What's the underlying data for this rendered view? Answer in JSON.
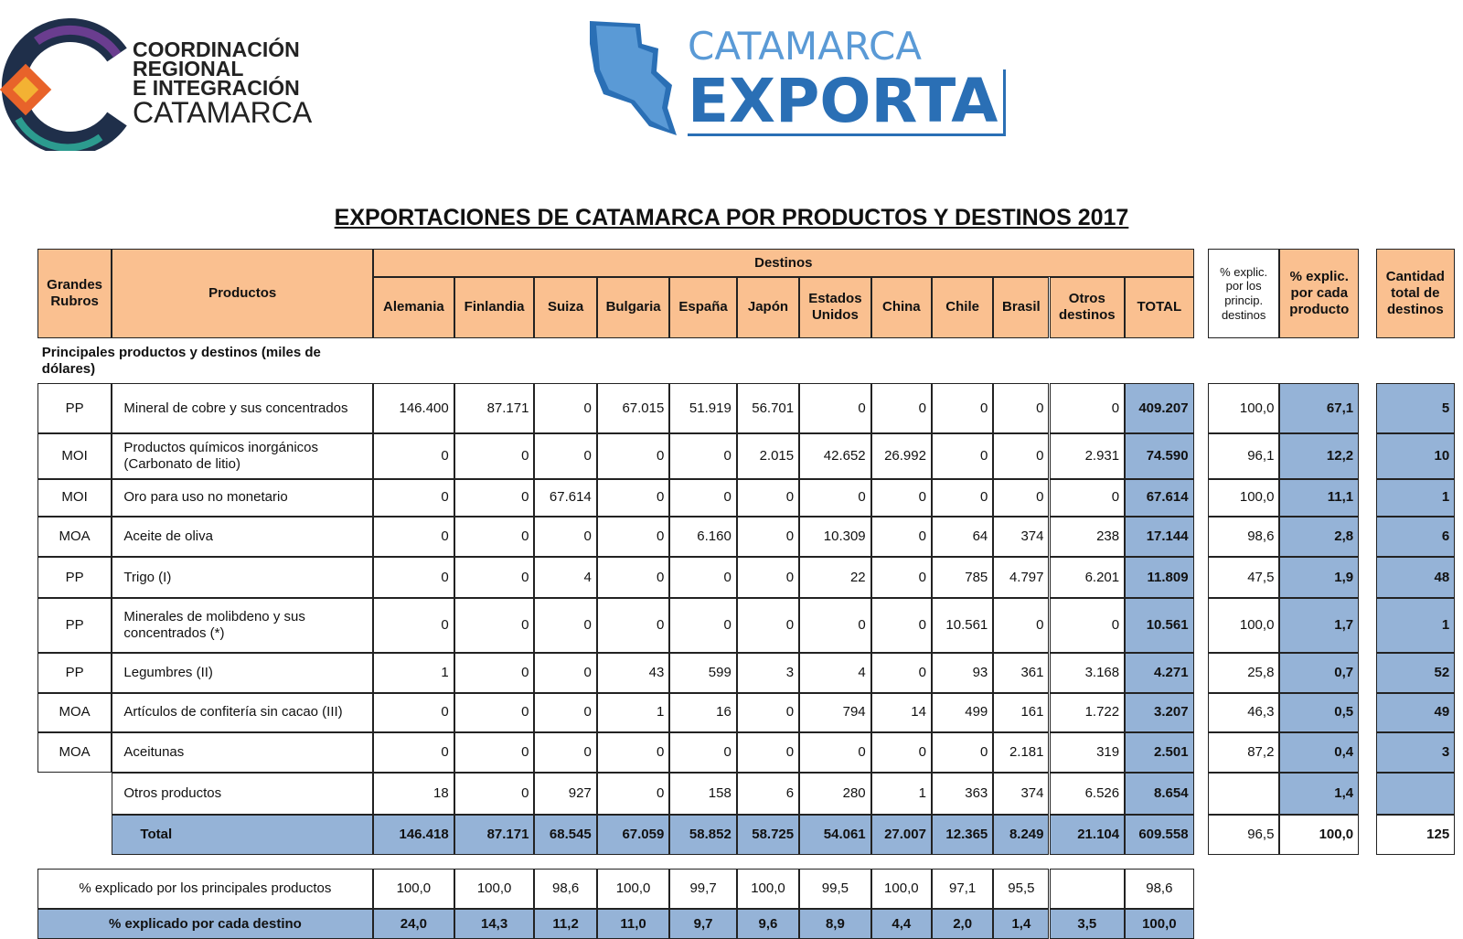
{
  "logo_left": {
    "lines": [
      "COORDINACIÓN",
      "REGIONAL",
      "E INTEGRACIÓN",
      "CATAMARCA"
    ]
  },
  "logo_right": {
    "lines": [
      "CATAMARCA",
      "EXPORTA"
    ]
  },
  "title": "EXPORTACIONES DE CATAMARCA POR PRODUCTOS Y DESTINOS 2017",
  "table": {
    "header": {
      "grandes_rubros": "Grandes Rubros",
      "productos": "Productos",
      "destinos": "Destinos",
      "columns": [
        "Alemania",
        "Finlandia",
        "Suiza",
        "Bulgaria",
        "España",
        "Japón",
        "Estados Unidos",
        "China",
        "Chile",
        "Brasil",
        "Otros destinos",
        "TOTAL"
      ],
      "pct_princ": "% explic. por los princip. destinos",
      "pct_prod": "% explic. por cada producto",
      "cantidad": "Cantidad total de destinos"
    },
    "section": "Principales productos y destinos (miles de dólares)",
    "rows": [
      {
        "rubro": "PP",
        "producto": "Mineral de cobre y sus concentrados",
        "values": [
          "146.400",
          "87.171",
          "0",
          "67.015",
          "51.919",
          "56.701",
          "0",
          "0",
          "0",
          "0",
          "0",
          "409.207"
        ],
        "pct_princ": "100,0",
        "pct_prod": "67,1",
        "cantidad": "5"
      },
      {
        "rubro": "MOI",
        "producto": "Productos químicos inorgánicos (Carbonato de litio)",
        "values": [
          "0",
          "0",
          "0",
          "0",
          "0",
          "2.015",
          "42.652",
          "26.992",
          "0",
          "0",
          "2.931",
          "74.590"
        ],
        "pct_princ": "96,1",
        "pct_prod": "12,2",
        "cantidad": "10"
      },
      {
        "rubro": "MOI",
        "producto": "Oro para uso no monetario",
        "values": [
          "0",
          "0",
          "67.614",
          "0",
          "0",
          "0",
          "0",
          "0",
          "0",
          "0",
          "0",
          "67.614"
        ],
        "pct_princ": "100,0",
        "pct_prod": "11,1",
        "cantidad": "1"
      },
      {
        "rubro": "MOA",
        "producto": "Aceite de oliva",
        "values": [
          "0",
          "0",
          "0",
          "0",
          "6.160",
          "0",
          "10.309",
          "0",
          "64",
          "374",
          "238",
          "17.144"
        ],
        "pct_princ": "98,6",
        "pct_prod": "2,8",
        "cantidad": "6"
      },
      {
        "rubro": "PP",
        "producto": "Trigo (I)",
        "values": [
          "0",
          "0",
          "4",
          "0",
          "0",
          "0",
          "22",
          "0",
          "785",
          "4.797",
          "6.201",
          "11.809"
        ],
        "pct_princ": "47,5",
        "pct_prod": "1,9",
        "cantidad": "48"
      },
      {
        "rubro": "PP",
        "producto": "Minerales de molibdeno y sus concentrados (*)",
        "values": [
          "0",
          "0",
          "0",
          "0",
          "0",
          "0",
          "0",
          "0",
          "10.561",
          "0",
          "0",
          "10.561"
        ],
        "pct_princ": "100,0",
        "pct_prod": "1,7",
        "cantidad": "1"
      },
      {
        "rubro": "PP",
        "producto": "Legumbres (II)",
        "values": [
          "1",
          "0",
          "0",
          "43",
          "599",
          "3",
          "4",
          "0",
          "93",
          "361",
          "3.168",
          "4.271"
        ],
        "pct_princ": "25,8",
        "pct_prod": "0,7",
        "cantidad": "52"
      },
      {
        "rubro": "MOA",
        "producto": "Artículos de confitería sin cacao (III)",
        "values": [
          "0",
          "0",
          "0",
          "1",
          "16",
          "0",
          "794",
          "14",
          "499",
          "161",
          "1.722",
          "3.207"
        ],
        "pct_princ": "46,3",
        "pct_prod": "0,5",
        "cantidad": "49"
      },
      {
        "rubro": "MOA",
        "producto": "Aceitunas",
        "values": [
          "0",
          "0",
          "0",
          "0",
          "0",
          "0",
          "0",
          "0",
          "0",
          "2.181",
          "319",
          "2.501"
        ],
        "pct_princ": "87,2",
        "pct_prod": "0,4",
        "cantidad": "3"
      },
      {
        "rubro": null,
        "producto": "Otros productos",
        "values": [
          "18",
          "0",
          "927",
          "0",
          "158",
          "6",
          "280",
          "1",
          "363",
          "374",
          "6.526",
          "8.654"
        ],
        "pct_princ": null,
        "pct_prod": "1,4",
        "cantidad": null
      }
    ],
    "total": {
      "label": "Total",
      "values": [
        "146.418",
        "87.171",
        "68.545",
        "67.059",
        "58.852",
        "58.725",
        "54.061",
        "27.007",
        "12.365",
        "8.249",
        "21.104",
        "609.558"
      ],
      "pct_princ": "96,5",
      "pct_prod": "100,0",
      "cantidad": "125"
    },
    "footer": [
      {
        "label": "% explicado por los principales productos",
        "values": [
          "100,0",
          "100,0",
          "98,6",
          "100,0",
          "99,7",
          "100,0",
          "99,5",
          "100,0",
          "97,1",
          "95,5",
          null,
          "98,6"
        ]
      },
      {
        "label": "% explicado por cada destino",
        "values": [
          "24,0",
          "14,3",
          "11,2",
          "11,0",
          "9,7",
          "9,6",
          "8,9",
          "4,4",
          "2,0",
          "1,4",
          "3,5",
          "100,0"
        ]
      }
    ]
  }
}
